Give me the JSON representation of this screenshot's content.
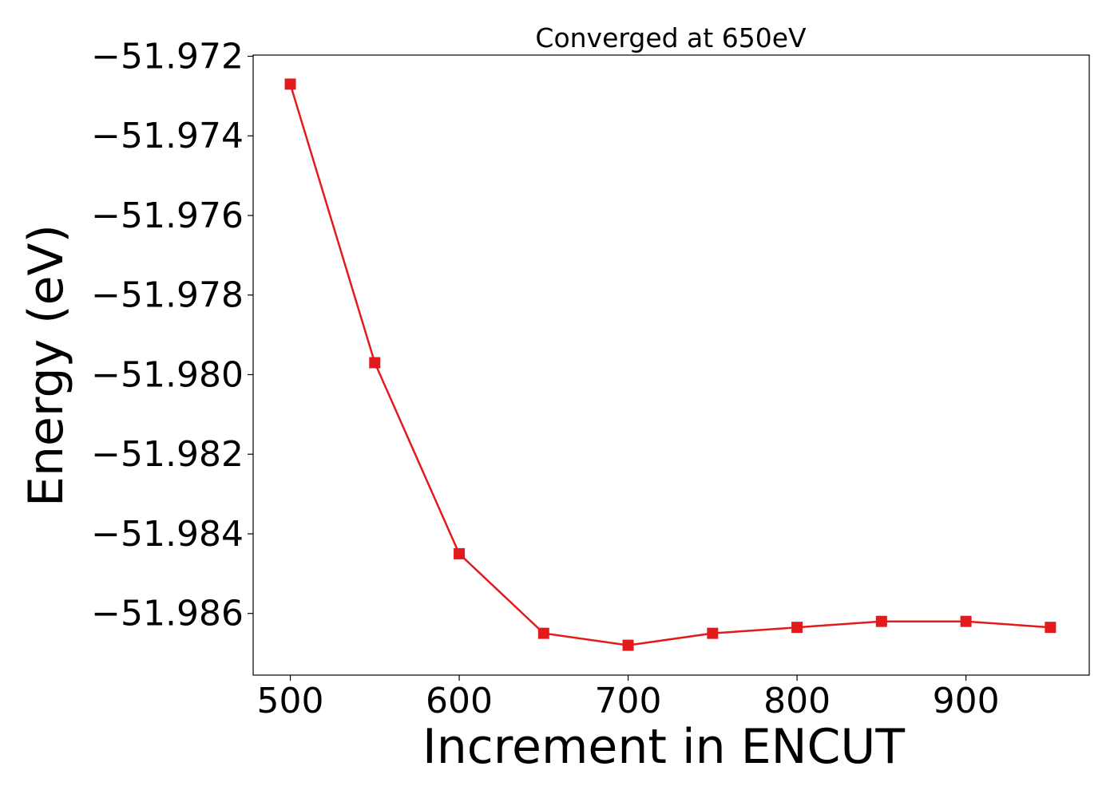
{
  "chart_data": {
    "type": "line",
    "title": "Converged at 650eV",
    "xlabel": "Increment in ENCUT",
    "ylabel": "Energy (eV)",
    "x": [
      500,
      550,
      600,
      650,
      700,
      750,
      800,
      850,
      900,
      950
    ],
    "series": [
      {
        "values": [
          -51.9727,
          -51.9797,
          -51.9845,
          -51.9865,
          -51.9868,
          -51.9865,
          -51.98635,
          -51.9862,
          -51.9862,
          -51.98635
        ],
        "color": "#e31a1c",
        "marker": "square"
      }
    ],
    "xlim": [
      478,
      973
    ],
    "ylim": [
      -51.98755,
      -51.97197
    ],
    "xticks": [
      500,
      600,
      700,
      800,
      900
    ],
    "xtick_labels": [
      "500",
      "600",
      "700",
      "800",
      "900"
    ],
    "yticks": [
      -51.972,
      -51.974,
      -51.976,
      -51.978,
      -51.98,
      -51.982,
      -51.984,
      -51.986
    ],
    "ytick_labels": [
      "−51.972",
      "−51.974",
      "−51.976",
      "−51.978",
      "−51.980",
      "−51.982",
      "−51.984",
      "−51.986"
    ],
    "grid": false,
    "legend": "none"
  }
}
